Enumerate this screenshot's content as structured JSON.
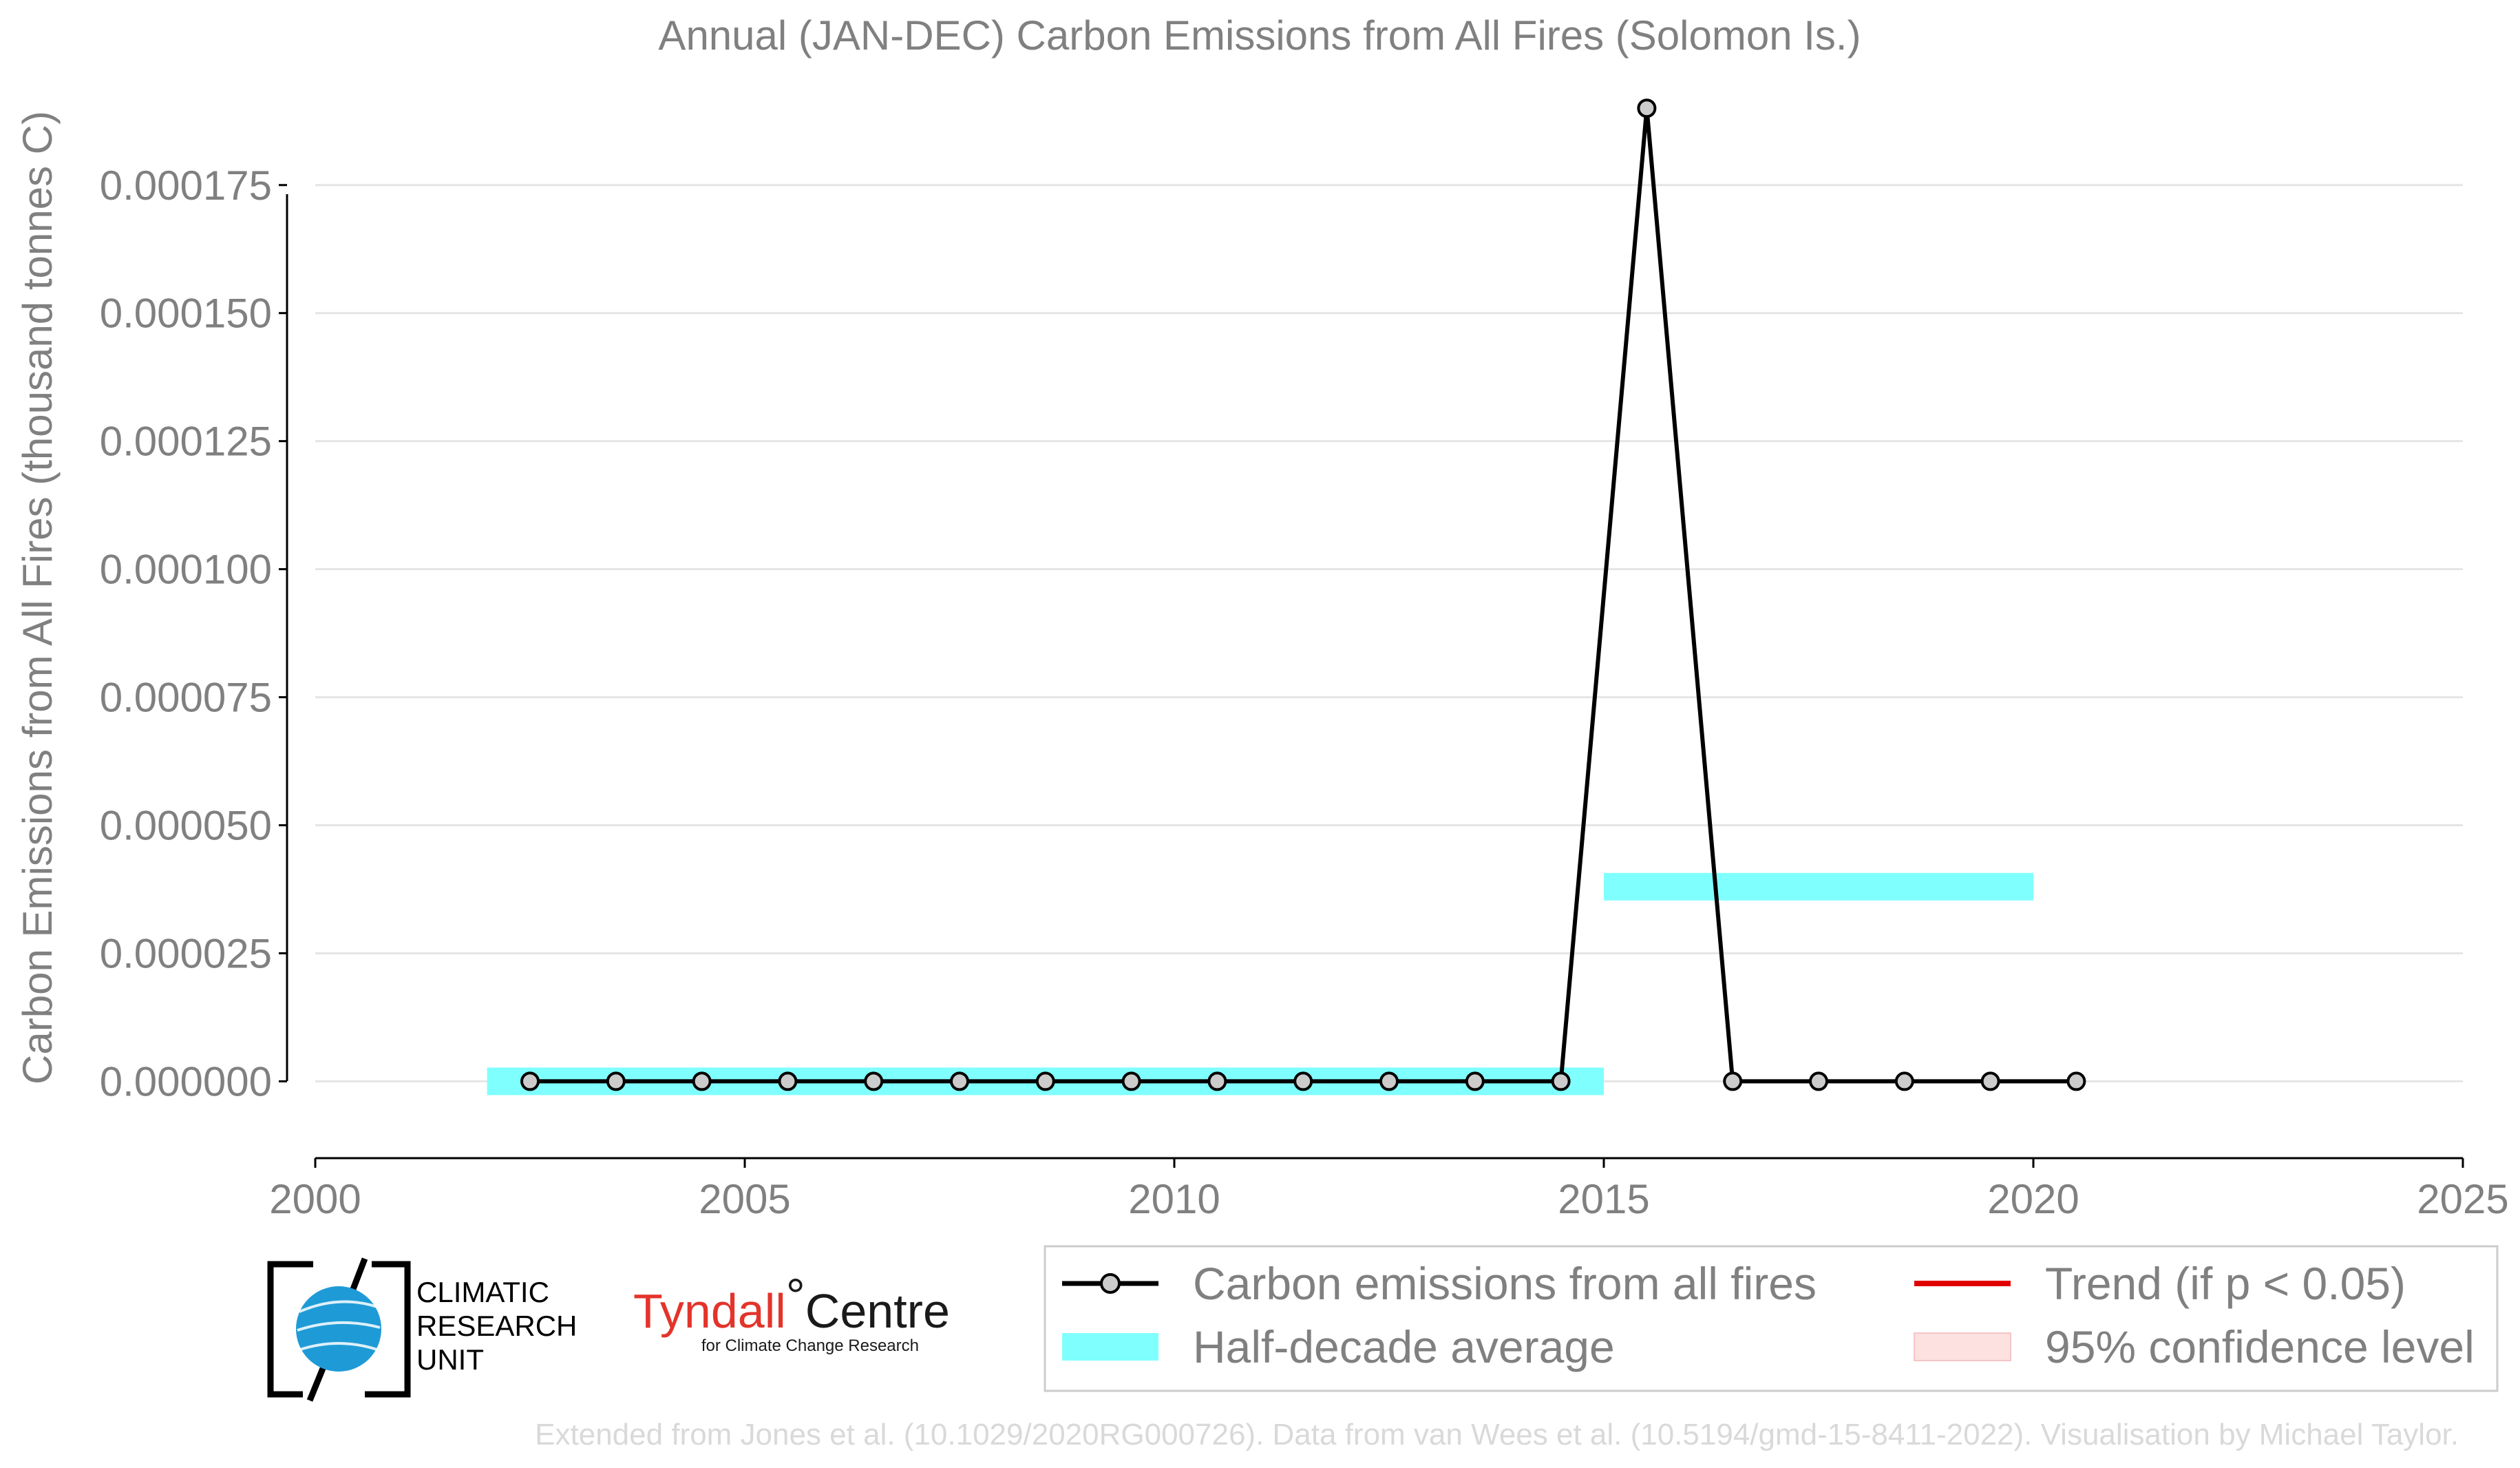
{
  "chart_data": {
    "type": "line",
    "title": "Annual (JAN-DEC) Carbon Emissions from All Fires (Solomon Is.)",
    "xlabel": "",
    "ylabel": "Carbon Emissions from All Fires (thousand tonnes C)",
    "xlim": [
      2000,
      2025
    ],
    "ylim": [
      -1.5e-05,
      0.000195
    ],
    "x_ticks": [
      "2000",
      "2005",
      "2010",
      "2015",
      "2020",
      "2025"
    ],
    "y_ticks": [
      "0.000000",
      "0.000025",
      "0.000050",
      "0.000075",
      "0.000100",
      "0.000125",
      "0.000150",
      "0.000175"
    ],
    "grid": "horizontal",
    "series": [
      {
        "name": "Carbon emissions from all fires",
        "color": "#000000",
        "x": [
          2002.5,
          2003.5,
          2004.5,
          2005.5,
          2006.5,
          2007.5,
          2008.5,
          2009.5,
          2010.5,
          2011.5,
          2012.5,
          2013.5,
          2014.5,
          2015.5,
          2016.5,
          2017.5,
          2018.5,
          2019.5,
          2020.5
        ],
        "y": [
          0,
          0,
          0,
          0,
          0,
          0,
          0,
          0,
          0,
          0,
          0,
          0,
          0,
          0.00019,
          0,
          0,
          0,
          0,
          0
        ]
      }
    ],
    "half_decade_average": {
      "name": "Half-decade average",
      "color": "#80ffff",
      "segments": [
        {
          "x0": 2002,
          "x1": 2015,
          "y": 0
        },
        {
          "x0": 2015,
          "x1": 2020,
          "y": 3.8e-05
        }
      ]
    },
    "legend": {
      "placement": "bottom-right",
      "entries": [
        {
          "label": "Carbon emissions from all fires",
          "kind": "line-marker",
          "color": "#000000"
        },
        {
          "label": "Trend (if p < 0.05)",
          "kind": "line",
          "color": "#e00000"
        },
        {
          "label": "Half-decade average",
          "kind": "patch",
          "color": "#80ffff"
        },
        {
          "label": "95% confidence level",
          "kind": "patch",
          "color": "#fde0e0"
        }
      ]
    }
  },
  "logos": {
    "cru": {
      "lines": [
        "CLIMATIC",
        "RESEARCH",
        "UNIT"
      ]
    },
    "tyndall": {
      "part1": "Tyndall",
      "degree": "°",
      "part2": "Centre",
      "subtitle": "for Climate Change Research"
    }
  },
  "footer": "Extended from Jones et al. (10.1029/2020RG000726). Data from van Wees et al. (10.5194/gmd-15-8411-2022). Visualisation by Michael Taylor."
}
